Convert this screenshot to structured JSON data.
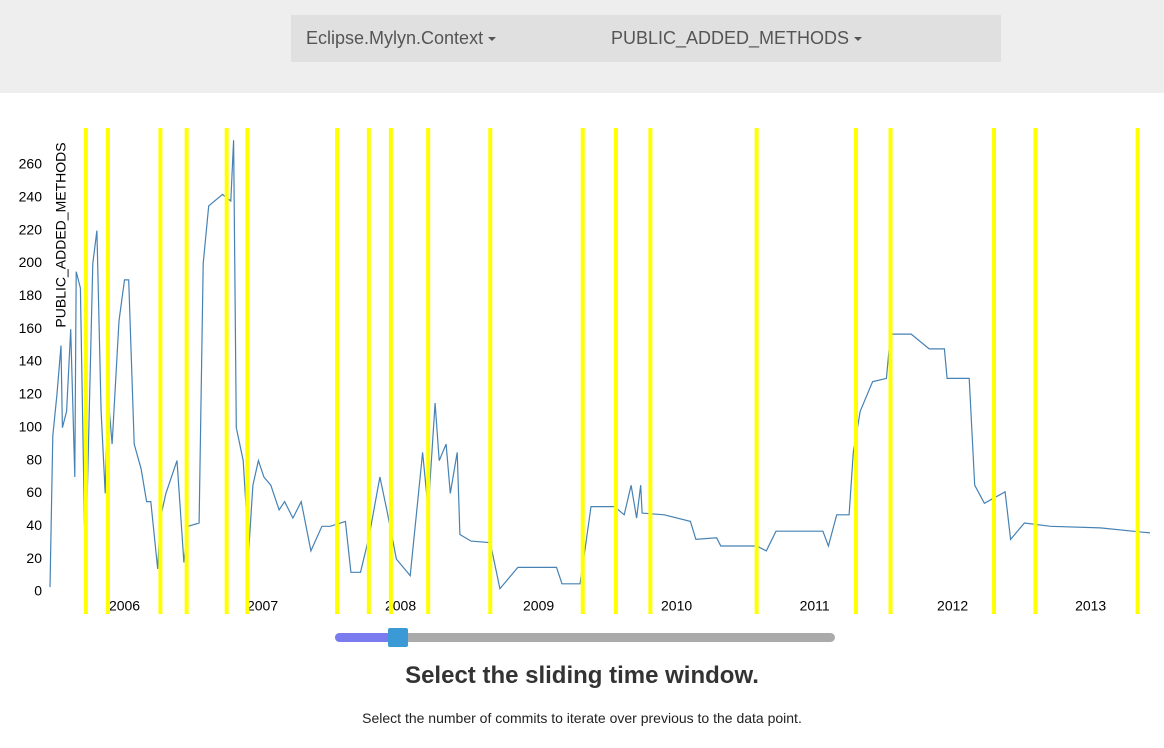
{
  "header": {
    "dropdowns": [
      {
        "label": "Eclipse.Mylyn.Context"
      },
      {
        "label": "PUBLIC_ADDED_METHODS"
      }
    ]
  },
  "chart_data": {
    "type": "line",
    "y_label": "PUBLIC_ADDED_METHODS",
    "xlim": [
      2005.46,
      2013.43
    ],
    "xticks": [
      2006,
      2007,
      2008,
      2009,
      2010,
      2011,
      2012,
      2013
    ],
    "ylim": [
      0,
      280
    ],
    "yticks": [
      0,
      20,
      40,
      60,
      80,
      100,
      120,
      140,
      160,
      180,
      200,
      220,
      240,
      260
    ],
    "series": [
      {
        "name": "PUBLIC_ADDED_METHODS",
        "color": "#4682b4",
        "x": [
          2005.46,
          2005.48,
          2005.51,
          2005.54,
          2005.55,
          2005.58,
          2005.61,
          2005.64,
          2005.65,
          2005.68,
          2005.71,
          2005.73,
          2005.77,
          2005.8,
          2005.83,
          2005.86,
          2005.88,
          2005.91,
          2005.96,
          2006.0,
          2006.03,
          2006.07,
          2006.12,
          2006.16,
          2006.19,
          2006.24,
          2006.26,
          2006.3,
          2006.38,
          2006.43,
          2006.46,
          2006.54,
          2006.57,
          2006.61,
          2006.71,
          2006.77,
          2006.79,
          2006.81,
          2006.86,
          2006.9,
          2006.93,
          2006.97,
          2007.01,
          2007.06,
          2007.12,
          2007.16,
          2007.22,
          2007.28,
          2007.35,
          2007.43,
          2007.49,
          2007.6,
          2007.64,
          2007.71,
          2007.77,
          2007.85,
          2007.9,
          2007.97,
          2008.07,
          2008.13,
          2008.16,
          2008.2,
          2008.25,
          2008.28,
          2008.33,
          2008.36,
          2008.41,
          2008.43,
          2008.51,
          2008.65,
          2008.72,
          2008.85,
          2009.13,
          2009.17,
          2009.3,
          2009.33,
          2009.38,
          2009.55,
          2009.62,
          2009.67,
          2009.71,
          2009.74,
          2009.75,
          2009.91,
          2010.1,
          2010.14,
          2010.29,
          2010.32,
          2010.58,
          2010.65,
          2010.72,
          2011.06,
          2011.1,
          2011.16,
          2011.25,
          2011.28,
          2011.33,
          2011.42,
          2011.52,
          2011.55,
          2011.7,
          2011.83,
          2011.94,
          2011.96,
          2012.12,
          2012.16,
          2012.23,
          2012.38,
          2012.42,
          2012.52,
          2012.71,
          2013.07,
          2013.43
        ],
        "values": [
          3,
          95,
          120,
          150,
          100,
          110,
          160,
          70,
          195,
          185,
          40,
          60,
          200,
          220,
          110,
          60,
          120,
          90,
          165,
          190,
          190,
          90,
          75,
          55,
          55,
          14,
          45,
          60,
          80,
          18,
          40,
          42,
          200,
          235,
          242,
          238,
          275,
          100,
          80,
          25,
          65,
          80,
          70,
          65,
          50,
          55,
          45,
          55,
          25,
          40,
          40,
          43,
          12,
          12,
          33,
          70,
          50,
          20,
          10,
          60,
          85,
          50,
          115,
          80,
          90,
          60,
          85,
          35,
          31,
          30,
          2,
          15,
          15,
          5,
          5,
          22,
          52,
          52,
          47,
          65,
          45,
          65,
          48,
          47,
          43,
          32,
          33,
          28,
          28,
          25,
          37,
          37,
          28,
          47,
          47,
          85,
          110,
          128,
          130,
          157,
          157,
          148,
          148,
          130,
          130,
          65,
          54,
          61,
          32,
          42,
          40,
          39,
          36
        ]
      }
    ],
    "markers": {
      "color": "#ffff00",
      "x": [
        2005.72,
        2005.88,
        2006.26,
        2006.45,
        2006.74,
        2006.89,
        2007.54,
        2007.77,
        2007.93,
        2008.2,
        2008.65,
        2009.32,
        2009.56,
        2009.81,
        2010.58,
        2011.3,
        2011.55,
        2012.3,
        2012.6,
        2013.34
      ]
    }
  },
  "slider": {
    "title": "Select the sliding time window.",
    "description": "Select the number of commits to iterate over previous to the data point."
  }
}
